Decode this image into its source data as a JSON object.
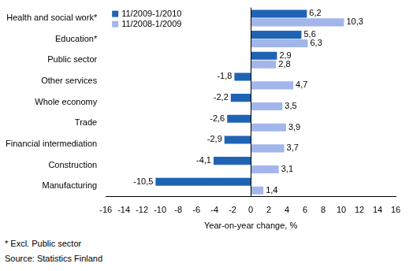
{
  "chart_data": {
    "type": "bar",
    "orientation": "horizontal",
    "categories": [
      "Health and social work*",
      "Education*",
      "Public sector",
      "Other services",
      "Whole economy",
      "Trade",
      "Financial intermediation",
      "Construction",
      "Manufacturing"
    ],
    "series": [
      {
        "name": "11/2009-1/2010",
        "color": "#1f64b4",
        "values": [
          6.2,
          5.6,
          2.9,
          -1.8,
          -2.2,
          -2.6,
          -2.9,
          -4.1,
          -10.5
        ],
        "value_labels": [
          "6,2",
          "5,6",
          "2,9",
          "-1,8",
          "-2,2",
          "-2,6",
          "-2,9",
          "-4,1",
          "-10,5"
        ]
      },
      {
        "name": "11/2008-1/2009",
        "color": "#a3b6ec",
        "values": [
          10.3,
          6.3,
          2.8,
          4.7,
          3.5,
          3.9,
          3.7,
          3.1,
          1.4
        ],
        "value_labels": [
          "10,3",
          "6,3",
          "2,8",
          "4,7",
          "3,5",
          "3,9",
          "3,7",
          "3,1",
          "1,4"
        ]
      }
    ],
    "x_label": "Year-on-year change, %",
    "xlim": [
      -16,
      16
    ],
    "xticks": [
      -16,
      -14,
      -12,
      -10,
      -8,
      -6,
      -4,
      -2,
      0,
      2,
      4,
      6,
      8,
      10,
      12,
      14,
      16
    ],
    "grid": false,
    "legend": "upper left",
    "data_labels": true,
    "notes": [
      "* Excl. Public sector",
      "Source: Statistics Finland"
    ]
  }
}
